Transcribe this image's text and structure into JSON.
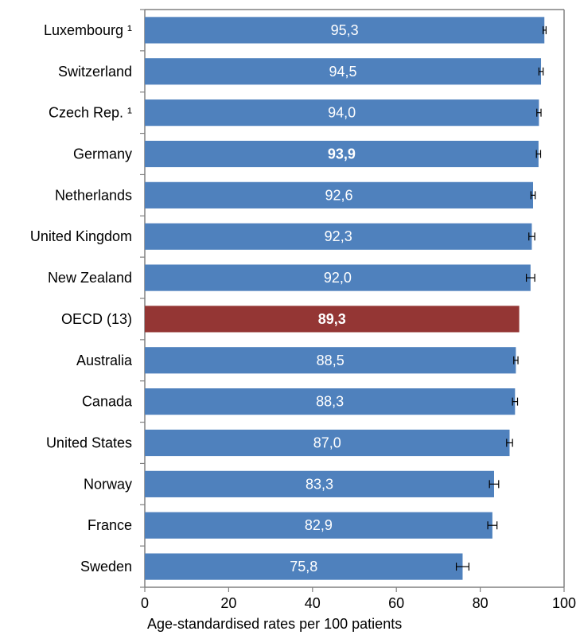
{
  "chart_data": {
    "type": "bar",
    "orientation": "horizontal",
    "title": "",
    "xlabel": "Age-standardised rates per 100 patients",
    "ylabel": "",
    "xlim": [
      0,
      100
    ],
    "x_ticks": [
      "0",
      "20",
      "40",
      "60",
      "80",
      "100"
    ],
    "grid": false,
    "legend": "none",
    "colors": {
      "default": "#4F81BD",
      "highlight": "#943634",
      "error_bar": "#000000",
      "frame": "#808080"
    },
    "categories": [
      "Luxembourg ¹",
      "Switzerland",
      "Czech Rep. ¹",
      "Germany",
      "Netherlands",
      "United Kingdom",
      "New Zealand",
      "OECD (13)",
      "Australia",
      "Canada",
      "United States",
      "Norway",
      "France",
      "Sweden"
    ],
    "values": [
      95.3,
      94.5,
      94.0,
      93.9,
      92.6,
      92.3,
      92.0,
      89.3,
      88.5,
      88.3,
      87.0,
      83.3,
      82.9,
      75.8
    ],
    "value_labels": [
      "95,3",
      "94,5",
      "94,0",
      "93,9",
      "92,6",
      "92,3",
      "92,0",
      "89,3",
      "88,5",
      "88,3",
      "87,0",
      "83,3",
      "82,9",
      "75,8"
    ],
    "error_bars": [
      [
        95.0,
        95.7
      ],
      [
        94.0,
        95.0
      ],
      [
        93.5,
        94.5
      ],
      [
        93.4,
        94.4
      ],
      [
        92.1,
        93.1
      ],
      [
        91.6,
        93.0
      ],
      [
        91.0,
        93.0
      ],
      null,
      [
        88.0,
        89.0
      ],
      [
        87.7,
        88.9
      ],
      [
        86.3,
        87.7
      ],
      [
        82.2,
        84.4
      ],
      [
        81.8,
        84.0
      ],
      [
        74.3,
        77.3
      ]
    ],
    "highlight_index": 7,
    "bold_label_indices": [
      3,
      7
    ]
  }
}
